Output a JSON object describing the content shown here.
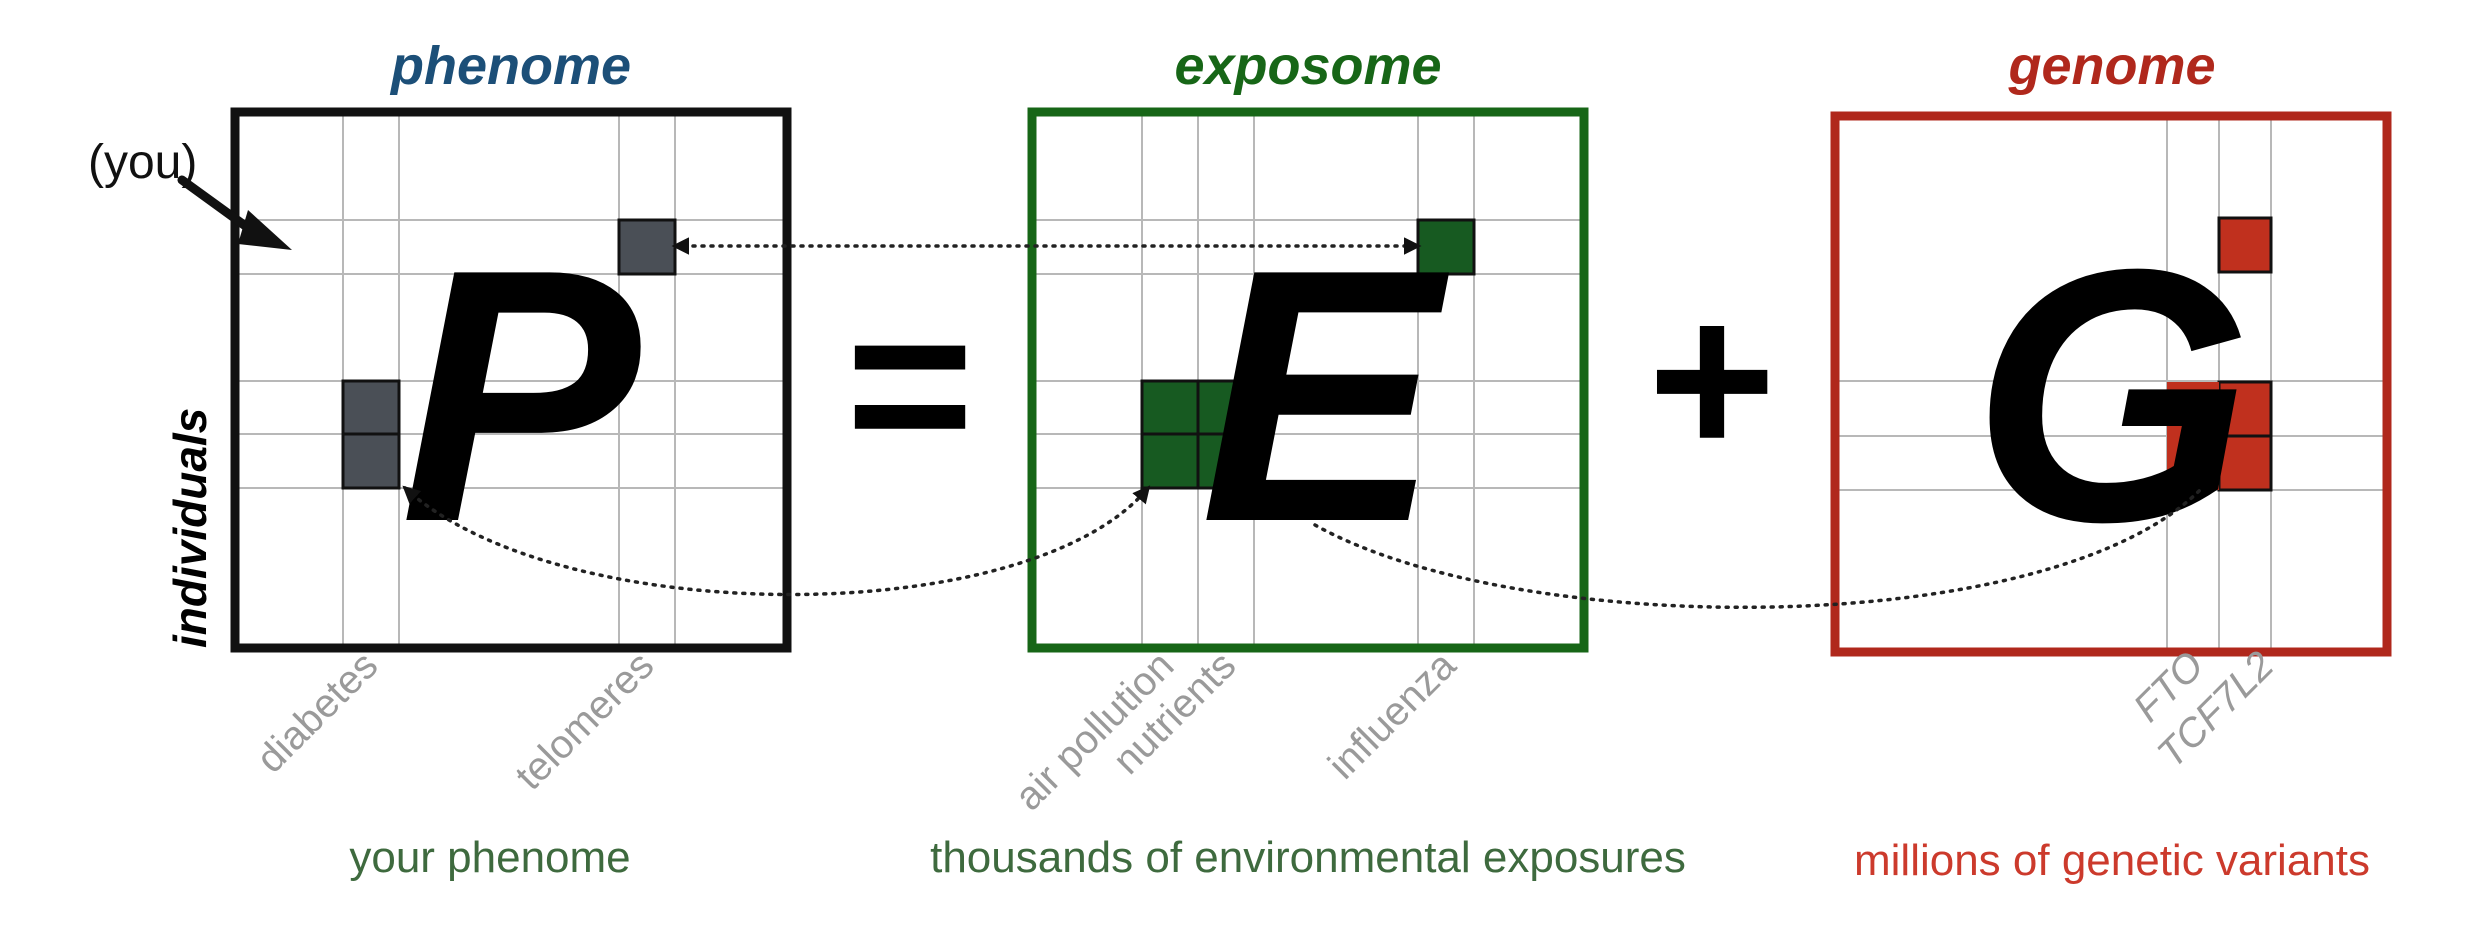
{
  "titles": {
    "phenome": "phenome",
    "exposome": "exposome",
    "genome": "genome"
  },
  "letters": {
    "phenome": "P",
    "exposome": "E",
    "genome": "G"
  },
  "operators": {
    "equals": "=",
    "plus": "+"
  },
  "row_marker": "(you)",
  "y_axis_label": "individuals",
  "column_labels": {
    "phenome": [
      "diabetes",
      "telomeres"
    ],
    "exposome": [
      "air pollution",
      "nutrients",
      "influenza"
    ],
    "genome": [
      "FTO",
      "TCF7L2"
    ]
  },
  "captions": {
    "phenome": "your phenome",
    "exposome": "thousands of environmental exposures",
    "genome": "millions of genetic variants"
  },
  "colors": {
    "phenome_title": "#1c4f78",
    "phenome_frame": "#111111",
    "phenome_cell": "#4a4f56",
    "exposome_title": "#176617",
    "exposome_frame": "#176617",
    "exposome_cell": "#175a21",
    "genome_title": "#b0281c",
    "genome_frame": "#b0281c",
    "genome_cell": "#c0301e",
    "phenome_caption": "#3e6a3e",
    "exposome_caption": "#3e6a3e",
    "genome_caption": "#cc3a2c"
  }
}
